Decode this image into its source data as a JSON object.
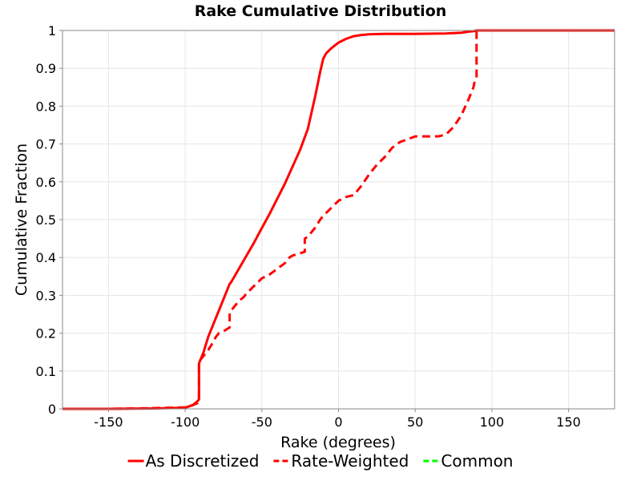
{
  "chart_data": {
    "type": "line",
    "title": "Rake Cumulative Distribution",
    "xlabel": "Rake (degrees)",
    "ylabel": "Cumulative Fraction",
    "xlim": [
      -180,
      180
    ],
    "ylim": [
      0,
      1
    ],
    "xticks": [
      -150,
      -100,
      -50,
      0,
      50,
      100,
      150
    ],
    "xtick_labels": [
      "-150",
      "-100",
      "-50",
      "0",
      "50",
      "100",
      "150"
    ],
    "yticks": [
      0,
      0.1,
      0.2,
      0.3,
      0.4,
      0.5,
      0.6,
      0.7,
      0.8,
      0.9,
      1
    ],
    "ytick_labels": [
      "0",
      "0.1",
      "0.2",
      "0.3",
      "0.4",
      "0.5",
      "0.6",
      "0.7",
      "0.8",
      "0.9",
      "1"
    ],
    "grid": true,
    "legend_position": "bottom",
    "series": [
      {
        "name": "As Discretized",
        "color": "#ff0000",
        "dash": "solid",
        "x": [
          -180,
          -150,
          -120,
          -100,
          -95,
          -92,
          -91,
          -91,
          -88,
          -85,
          -80,
          -75,
          -72,
          -71,
          -70,
          -65,
          -60,
          -55,
          -50,
          -45,
          -40,
          -35,
          -30,
          -25,
          -20,
          -15,
          -12,
          -10,
          -8,
          -5,
          0,
          5,
          10,
          15,
          20,
          30,
          50,
          70,
          80,
          85,
          88,
          90,
          100,
          120,
          150,
          180
        ],
        "y": [
          0,
          0,
          0.001,
          0.003,
          0.01,
          0.02,
          0.025,
          0.12,
          0.15,
          0.19,
          0.24,
          0.29,
          0.32,
          0.33,
          0.335,
          0.37,
          0.405,
          0.44,
          0.478,
          0.515,
          0.555,
          0.595,
          0.64,
          0.685,
          0.74,
          0.83,
          0.89,
          0.925,
          0.94,
          0.952,
          0.968,
          0.978,
          0.985,
          0.988,
          0.99,
          0.991,
          0.991,
          0.992,
          0.994,
          0.997,
          0.998,
          1,
          1,
          1,
          1,
          1
        ]
      },
      {
        "name": "Rate-Weighted",
        "color": "#ff0000",
        "dash": "dashed",
        "x": [
          -180,
          -150,
          -120,
          -100,
          -95,
          -92,
          -91,
          -91,
          -88,
          -85,
          -82,
          -80,
          -78,
          -75,
          -71,
          -71,
          -68,
          -65,
          -62,
          -60,
          -55,
          -50,
          -45,
          -40,
          -35,
          -32,
          -30,
          -22,
          -22,
          -20,
          -15,
          -12,
          -10,
          -5,
          0,
          5,
          10,
          12,
          15,
          20,
          25,
          30,
          35,
          40,
          50,
          60,
          65,
          70,
          75,
          80,
          85,
          88,
          89,
          90,
          90,
          100,
          120,
          150,
          180
        ],
        "y": [
          0,
          0,
          0.002,
          0.004,
          0.01,
          0.015,
          0.02,
          0.125,
          0.14,
          0.155,
          0.175,
          0.19,
          0.2,
          0.205,
          0.215,
          0.255,
          0.27,
          0.285,
          0.295,
          0.305,
          0.325,
          0.345,
          0.355,
          0.37,
          0.385,
          0.4,
          0.405,
          0.415,
          0.45,
          0.455,
          0.48,
          0.5,
          0.51,
          0.53,
          0.55,
          0.56,
          0.565,
          0.575,
          0.59,
          0.62,
          0.645,
          0.665,
          0.69,
          0.705,
          0.72,
          0.72,
          0.72,
          0.725,
          0.745,
          0.775,
          0.82,
          0.85,
          0.87,
          0.875,
          1,
          1,
          1,
          1,
          1
        ]
      },
      {
        "name": "Common",
        "color": "#00ff00",
        "dash": "dashed",
        "x": [],
        "y": []
      }
    ]
  }
}
